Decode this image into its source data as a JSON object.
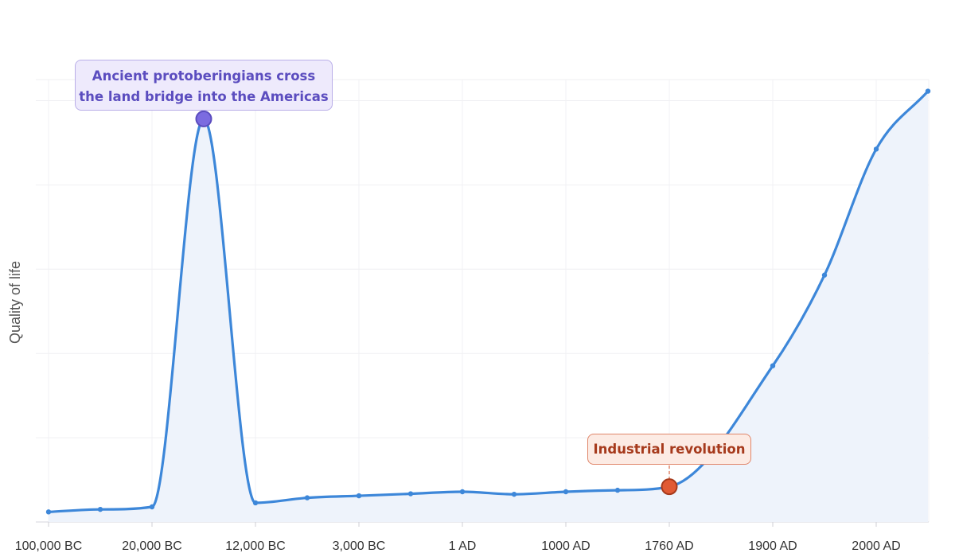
{
  "chart_data": {
    "type": "area",
    "title": "",
    "xlabel": "",
    "ylabel": "Quality of life",
    "categories": [
      "100,000 BC",
      "20,000 BC",
      "12,000 BC",
      "3,000 BC",
      "1 AD",
      "1000 AD",
      "1760 AD",
      "1900 AD",
      "2000 AD"
    ],
    "y_ticks_shown": false,
    "grid": true,
    "series": [
      {
        "name": "",
        "color": "#3d87d9",
        "fill": "#eef3fb",
        "points": [
          {
            "pos": 0.0,
            "y": 2.0
          },
          {
            "pos": 0.5,
            "y": 2.5
          },
          {
            "pos": 1.0,
            "y": 3.0
          },
          {
            "pos": 1.5,
            "y": 80.0
          },
          {
            "pos": 2.0,
            "y": 3.8
          },
          {
            "pos": 2.5,
            "y": 4.8
          },
          {
            "pos": 3.0,
            "y": 5.2
          },
          {
            "pos": 3.5,
            "y": 5.6
          },
          {
            "pos": 4.0,
            "y": 6.0
          },
          {
            "pos": 4.5,
            "y": 5.5
          },
          {
            "pos": 5.0,
            "y": 6.0
          },
          {
            "pos": 5.5,
            "y": 6.3
          },
          {
            "pos": 6.0,
            "y": 7.0
          },
          {
            "pos": 7.0,
            "y": 31.0
          },
          {
            "pos": 7.5,
            "y": 49.0
          },
          {
            "pos": 8.0,
            "y": 74.0
          },
          {
            "pos": 8.5,
            "y": 85.5
          }
        ]
      }
    ],
    "annotations": [
      {
        "text_lines": [
          "Ancient protoberingians cross",
          "the land bridge into the Americas"
        ],
        "pos": 1.5,
        "y": 80.0,
        "color": "#5b4dbf",
        "box_fill": "#eeeafc",
        "border": "#b9aee8",
        "marker": "#7b6be0",
        "marker_stroke": "#5b4dbf"
      },
      {
        "text_lines": [
          "Industrial revolution"
        ],
        "pos": 6.0,
        "y": 7.0,
        "color": "#a63a1c",
        "box_fill": "#fcebe4",
        "border": "#e0866a",
        "marker": "#e15a34",
        "marker_stroke": "#a63a1c"
      }
    ]
  }
}
